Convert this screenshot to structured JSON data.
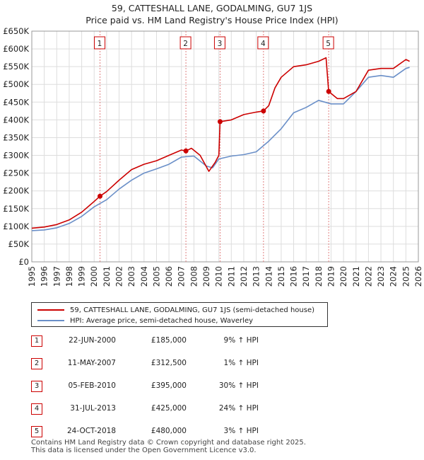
{
  "header": {
    "title_line1": "59, CATTESHALL LANE, GODALMING, GU7 1JS",
    "title_line2": "Price paid vs. HM Land Registry's House Price Index (HPI)"
  },
  "colors": {
    "price": "#cc0000",
    "hpi": "#6a8fc8",
    "vline": "#e08080",
    "grid": "#dddddd"
  },
  "chart_data": {
    "type": "line",
    "x_range": [
      1995,
      2026
    ],
    "ylim": [
      0,
      650000
    ],
    "y_ticks": [
      {
        "v": 0,
        "label": "£0"
      },
      {
        "v": 50000,
        "label": "£50K"
      },
      {
        "v": 100000,
        "label": "£100K"
      },
      {
        "v": 150000,
        "label": "£150K"
      },
      {
        "v": 200000,
        "label": "£200K"
      },
      {
        "v": 250000,
        "label": "£250K"
      },
      {
        "v": 300000,
        "label": "£300K"
      },
      {
        "v": 350000,
        "label": "£350K"
      },
      {
        "v": 400000,
        "label": "£400K"
      },
      {
        "v": 450000,
        "label": "£450K"
      },
      {
        "v": 500000,
        "label": "£500K"
      },
      {
        "v": 550000,
        "label": "£550K"
      },
      {
        "v": 600000,
        "label": "£600K"
      },
      {
        "v": 650000,
        "label": "£650K"
      }
    ],
    "x_ticks": [
      "1995",
      "1996",
      "1997",
      "1998",
      "1999",
      "2000",
      "2001",
      "2002",
      "2003",
      "2004",
      "2005",
      "2006",
      "2007",
      "2008",
      "2009",
      "2010",
      "2011",
      "2012",
      "2013",
      "2014",
      "2015",
      "2016",
      "2017",
      "2018",
      "2019",
      "2020",
      "2021",
      "2022",
      "2023",
      "2024",
      "2025",
      "2026"
    ],
    "series": [
      {
        "name": "59, CATTESHALL LANE, GODALMING, GU7 1JS (semi-detached house)",
        "points": [
          [
            1995.0,
            95000
          ],
          [
            1996.0,
            98000
          ],
          [
            1997.0,
            105000
          ],
          [
            1998.0,
            118000
          ],
          [
            1999.0,
            140000
          ],
          [
            2000.0,
            170000
          ],
          [
            2000.47,
            185000
          ],
          [
            2001.0,
            198000
          ],
          [
            2002.0,
            230000
          ],
          [
            2003.0,
            260000
          ],
          [
            2004.0,
            275000
          ],
          [
            2005.0,
            285000
          ],
          [
            2006.0,
            300000
          ],
          [
            2007.0,
            315000
          ],
          [
            2007.36,
            312500
          ],
          [
            2007.8,
            320000
          ],
          [
            2008.5,
            300000
          ],
          [
            2009.2,
            255000
          ],
          [
            2009.7,
            280000
          ],
          [
            2010.0,
            300000
          ],
          [
            2010.1,
            395000
          ],
          [
            2011.0,
            400000
          ],
          [
            2012.0,
            415000
          ],
          [
            2013.0,
            422000
          ],
          [
            2013.58,
            425000
          ],
          [
            2014.0,
            440000
          ],
          [
            2014.5,
            490000
          ],
          [
            2015.0,
            520000
          ],
          [
            2016.0,
            550000
          ],
          [
            2017.0,
            555000
          ],
          [
            2018.0,
            565000
          ],
          [
            2018.6,
            575000
          ],
          [
            2018.81,
            480000
          ],
          [
            2019.5,
            460000
          ],
          [
            2020.0,
            460000
          ],
          [
            2021.0,
            480000
          ],
          [
            2022.0,
            540000
          ],
          [
            2023.0,
            545000
          ],
          [
            2024.0,
            545000
          ],
          [
            2025.0,
            570000
          ],
          [
            2025.3,
            565000
          ]
        ]
      },
      {
        "name": "HPI: Average price, semi-detached house, Waverley",
        "points": [
          [
            1995.0,
            88000
          ],
          [
            1996.0,
            90000
          ],
          [
            1997.0,
            96000
          ],
          [
            1998.0,
            108000
          ],
          [
            1999.0,
            128000
          ],
          [
            2000.0,
            155000
          ],
          [
            2001.0,
            175000
          ],
          [
            2002.0,
            205000
          ],
          [
            2003.0,
            230000
          ],
          [
            2004.0,
            250000
          ],
          [
            2005.0,
            262000
          ],
          [
            2006.0,
            275000
          ],
          [
            2007.0,
            295000
          ],
          [
            2008.0,
            298000
          ],
          [
            2009.0,
            270000
          ],
          [
            2009.5,
            265000
          ],
          [
            2010.0,
            290000
          ],
          [
            2011.0,
            298000
          ],
          [
            2012.0,
            302000
          ],
          [
            2013.0,
            310000
          ],
          [
            2014.0,
            340000
          ],
          [
            2015.0,
            375000
          ],
          [
            2016.0,
            420000
          ],
          [
            2017.0,
            435000
          ],
          [
            2018.0,
            455000
          ],
          [
            2019.0,
            445000
          ],
          [
            2020.0,
            445000
          ],
          [
            2021.0,
            480000
          ],
          [
            2022.0,
            520000
          ],
          [
            2023.0,
            525000
          ],
          [
            2024.0,
            520000
          ],
          [
            2025.0,
            545000
          ],
          [
            2025.3,
            548000
          ]
        ]
      }
    ],
    "sales": [
      {
        "id": "1",
        "x": 2000.47,
        "price": 185000
      },
      {
        "id": "2",
        "x": 2007.36,
        "price": 312500
      },
      {
        "id": "3",
        "x": 2010.1,
        "price": 395000
      },
      {
        "id": "4",
        "x": 2013.58,
        "price": 425000
      },
      {
        "id": "5",
        "x": 2018.81,
        "price": 480000
      }
    ]
  },
  "legend": {
    "price_label": "59, CATTESHALL LANE, GODALMING, GU7 1JS (semi-detached house)",
    "hpi_label": "HPI: Average price, semi-detached house, Waverley"
  },
  "sales_table": [
    {
      "num": "1",
      "date": "22-JUN-2000",
      "price": "£185,000",
      "hpi": "9% ↑ HPI"
    },
    {
      "num": "2",
      "date": "11-MAY-2007",
      "price": "£312,500",
      "hpi": "1% ↑ HPI"
    },
    {
      "num": "3",
      "date": "05-FEB-2010",
      "price": "£395,000",
      "hpi": "30% ↑ HPI"
    },
    {
      "num": "4",
      "date": "31-JUL-2013",
      "price": "£425,000",
      "hpi": "24% ↑ HPI"
    },
    {
      "num": "5",
      "date": "24-OCT-2018",
      "price": "£480,000",
      "hpi": "3% ↑ HPI"
    }
  ],
  "footer": {
    "line1": "Contains HM Land Registry data © Crown copyright and database right 2025.",
    "line2": "This data is licensed under the Open Government Licence v3.0."
  }
}
